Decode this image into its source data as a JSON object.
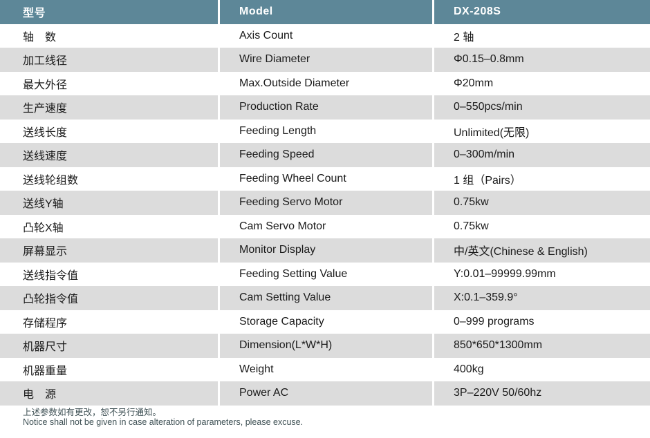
{
  "colors": {
    "header_bg": "#5d8798",
    "alt_row_bg": "#dcdcdc",
    "body_text": "#1a1a1a",
    "footer_text": "#3e5054"
  },
  "table": {
    "header": {
      "col1": "型号",
      "col2": "Model",
      "col3": "DX-208S"
    },
    "rows": [
      {
        "label_zh": "轴　数",
        "label_en": "Axis Count",
        "value": "2 轴"
      },
      {
        "label_zh": "加工线径",
        "label_en": "Wire Diameter",
        "value": "Φ0.15–0.8mm"
      },
      {
        "label_zh": "最大外径",
        "label_en": "Max.Outside Diameter",
        "value": "Φ20mm"
      },
      {
        "label_zh": "生产速度",
        "label_en": "Production Rate",
        "value": "0–550pcs/min"
      },
      {
        "label_zh": "送线长度",
        "label_en": "Feeding Length",
        "value": "Unlimited(无限)"
      },
      {
        "label_zh": "送线速度",
        "label_en": "Feeding Speed",
        "value": "0–300m/min"
      },
      {
        "label_zh": "送线轮组数",
        "label_en": "Feeding Wheel Count",
        "value": "1 组（Pairs）"
      },
      {
        "label_zh": "送线Y轴",
        "label_en": "Feeding Servo Motor",
        "value": "0.75kw"
      },
      {
        "label_zh": "凸轮X轴",
        "label_en": "Cam Servo Motor",
        "value": "0.75kw"
      },
      {
        "label_zh": "屏幕显示",
        "label_en": "Monitor Display",
        "value": "中/英文(Chinese & English)"
      },
      {
        "label_zh": "送线指令值",
        "label_en": "Feeding Setting Value",
        "value": "Y:0.01–99999.99mm"
      },
      {
        "label_zh": "凸轮指令值",
        "label_en": "Cam Setting Value",
        "value": "X:0.1–359.9°"
      },
      {
        "label_zh": "存储程序",
        "label_en": "Storage Capacity",
        "value": "0–999 programs"
      },
      {
        "label_zh": "机器尺寸",
        "label_en": "Dimension(L*W*H)",
        "value": "850*650*1300mm"
      },
      {
        "label_zh": "机器重量",
        "label_en": "Weight",
        "value": "400kg"
      },
      {
        "label_zh": "电　源",
        "label_en": "Power AC",
        "value": "3P–220V 50/60hz"
      }
    ]
  },
  "footer": {
    "line_zh": "上述参数如有更改，恕不另行通知。",
    "line_en": "Notice shall not be given in case alteration of parameters, please excuse."
  }
}
